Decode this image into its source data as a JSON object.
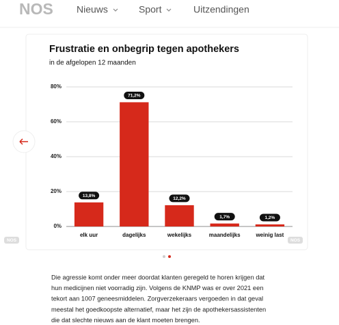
{
  "nav": {
    "logo": "NOS",
    "items": [
      "Nieuws",
      "Sport",
      "Uitzendingen"
    ]
  },
  "chart_data": {
    "type": "bar",
    "title": "Frustratie en onbegrip tegen apothekers",
    "subtitle": "in de afgelopen 12 maanden",
    "categories": [
      "elk uur",
      "dagelijks",
      "wekelijks",
      "maandelijks",
      "weinig last"
    ],
    "values": [
      13.8,
      71.2,
      12.2,
      1.7,
      1.2
    ],
    "value_labels": [
      "13,8%",
      "71,2%",
      "12,2%",
      "1,7%",
      "1,2%"
    ],
    "color": "#d6291b",
    "ylim": [
      0,
      80
    ],
    "yticks": [
      {
        "value": 0,
        "label": "0%"
      },
      {
        "value": 20,
        "label": "20%"
      },
      {
        "value": 40,
        "label": "40%"
      },
      {
        "value": 60,
        "label": "60%"
      },
      {
        "value": 80,
        "label": "80%"
      }
    ],
    "grid": true,
    "watermark": "NOS"
  },
  "article": {
    "lines": [
      "Die agressie komt onder meer doordat klanten geregeld te horen krijgen dat",
      "hun medicijnen niet voorradig zijn. Volgens de KNMP was er over 2021 een",
      "tekort aan 1007 geneesmiddelen. Zorgverzekeraars vergoeden in dat geval",
      "meestal het goedkoopste alternatief, maar het zijn de apothekersassistenten",
      "die dat slechte nieuws aan de klant moeten brengen."
    ]
  }
}
